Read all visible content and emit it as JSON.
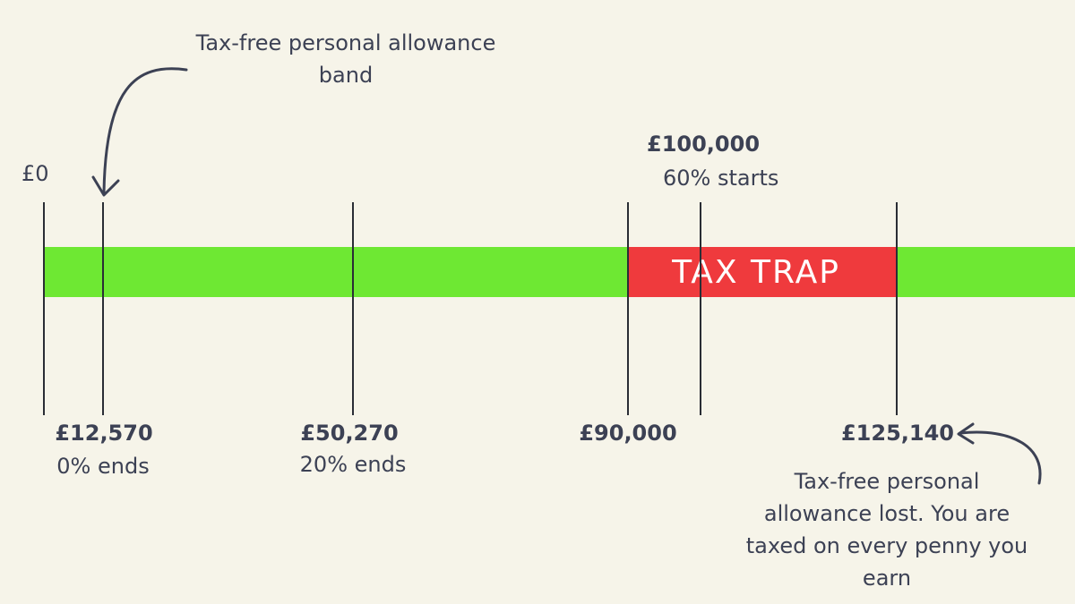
{
  "top_note": "Tax-free personal allowance band",
  "zero_label": "£0",
  "trap_label": "TAX TRAP",
  "markers": [
    {
      "amount": "£12,570",
      "desc": "0% ends"
    },
    {
      "amount": "£50,270",
      "desc": "20% ends"
    },
    {
      "amount": "£90,000",
      "desc": ""
    },
    {
      "amount": "£100,000",
      "desc": "60% starts"
    },
    {
      "amount": "£125,140",
      "desc": ""
    }
  ],
  "bottom_note_lines": [
    "Tax-free personal",
    "allowance lost. You are",
    "taxed on every penny you",
    "earn"
  ],
  "colors": {
    "background": "#f6f4e9",
    "bar_green": "#6ee833",
    "trap_red": "#ef3a3d",
    "text": "#3c4154"
  }
}
